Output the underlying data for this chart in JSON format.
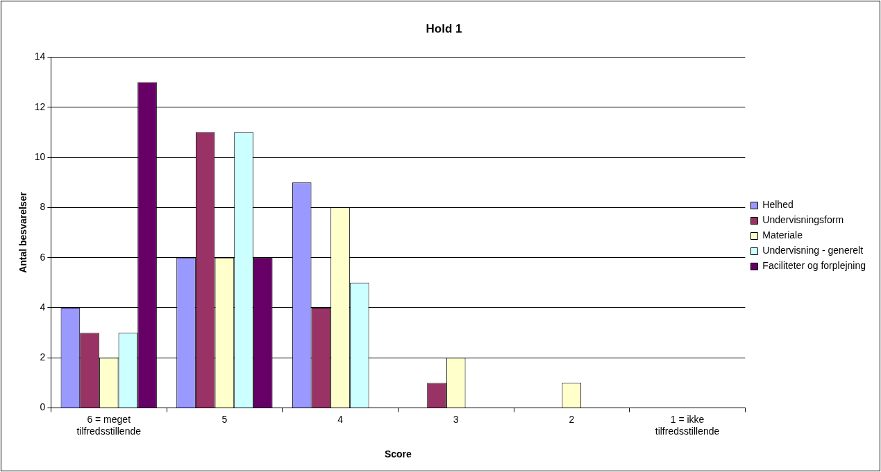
{
  "chart_data": {
    "type": "bar",
    "title": "Hold 1",
    "xlabel": "Score",
    "ylabel": "Antal besvarelser",
    "categories": [
      "6 = meget tilfredsstillende",
      "5",
      "4",
      "3",
      "2",
      "1 = ikke tilfredsstillende"
    ],
    "series": [
      {
        "name": "Helhed",
        "color": "#9999ff",
        "values": [
          4,
          6,
          9,
          0,
          0,
          0
        ]
      },
      {
        "name": "Undervisningsform",
        "color": "#993366",
        "values": [
          3,
          11,
          4,
          1,
          0,
          0
        ]
      },
      {
        "name": "Materiale",
        "color": "#ffffcc",
        "values": [
          2,
          6,
          8,
          2,
          1,
          0
        ]
      },
      {
        "name": "Undervisning - generelt",
        "color": "#ccffff",
        "values": [
          3,
          11,
          5,
          0,
          0,
          0
        ]
      },
      {
        "name": "Faciliteter og forplejning",
        "color": "#660066",
        "values": [
          13,
          6,
          0,
          0,
          0,
          0
        ]
      }
    ],
    "ylim": [
      0,
      14
    ],
    "yticks": [
      0,
      2,
      4,
      6,
      8,
      10,
      12,
      14
    ],
    "grid": "y",
    "legend": "right"
  }
}
